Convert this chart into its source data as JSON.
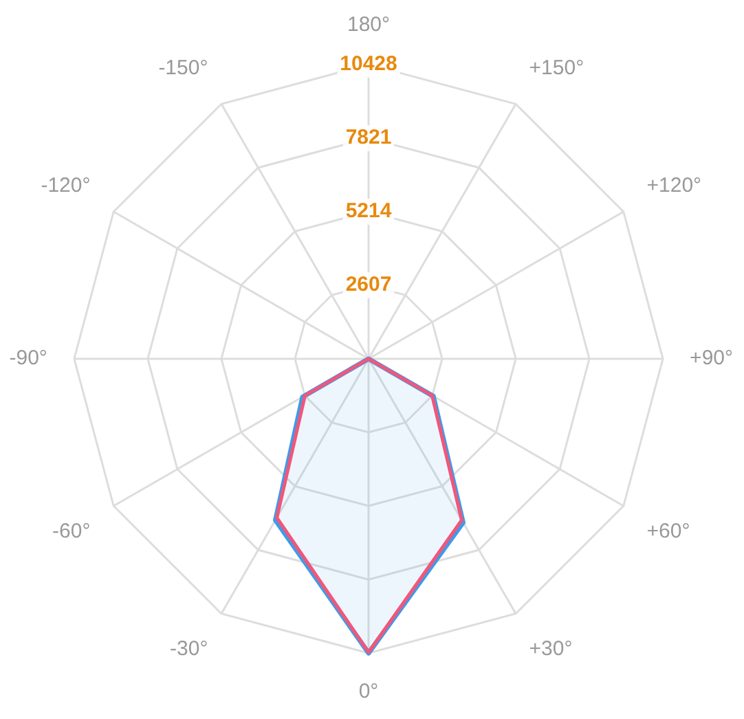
{
  "chart_data": {
    "type": "radar",
    "categories": [
      "180°",
      "+150°",
      "+120°",
      "+90°",
      "+60°",
      "+30°",
      "0°",
      "-30°",
      "-60°",
      "-90°",
      "-120°",
      "-150°"
    ],
    "series": [
      {
        "color": "#3d9be9",
        "values": [
          0,
          0,
          0,
          0,
          2650,
          6700,
          10428,
          6600,
          2700,
          0,
          0,
          0
        ]
      },
      {
        "color": "#f0577a",
        "values": [
          0,
          0,
          0,
          0,
          2600,
          6600,
          10400,
          6500,
          2600,
          0,
          0,
          0
        ]
      }
    ],
    "ylim": [
      0,
      10428
    ],
    "yticks": [
      2607,
      5214,
      7821,
      10428
    ],
    "grid": true,
    "marker": "none"
  }
}
